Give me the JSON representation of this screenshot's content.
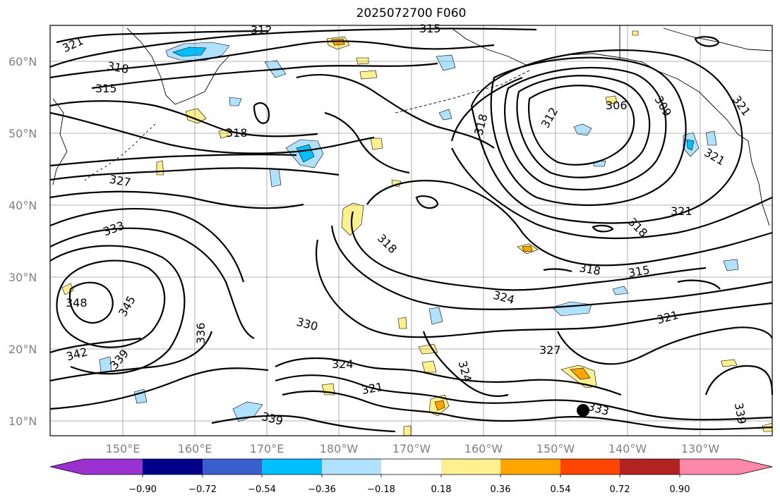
{
  "title": "2025072700 F060",
  "lat_labels": [
    "60°N",
    "50°N",
    "40°N",
    "30°N",
    "20°N",
    "10°N"
  ],
  "lon_labels": [
    "150°E",
    "160°E",
    "170°E",
    "180°W",
    "170°W",
    "160°W",
    "150°W",
    "140°W",
    "130°W"
  ],
  "contour_labels": [
    "321",
    "312",
    "315",
    "318",
    "315",
    "318",
    "327",
    "333",
    "348",
    "345",
    "342",
    "339",
    "336",
    "330",
    "324",
    "321",
    "339",
    "318",
    "312",
    "306",
    "309",
    "321",
    "321",
    "321",
    "318",
    "318",
    "318",
    "315",
    "324",
    "321",
    "327",
    "324",
    "333",
    "339"
  ],
  "colorbar": {
    "tick_labels": [
      "−0.90",
      "−0.72",
      "−0.54",
      "−0.36",
      "−0.18",
      "0.18",
      "0.36",
      "0.54",
      "0.72",
      "0.90"
    ],
    "colors": [
      "#9b30d0",
      "#00008b",
      "#3a5fcd",
      "#00bfff",
      "#b0e2ff",
      "#ffffff",
      "#fff08f",
      "#ffa500",
      "#ff4500",
      "#b22222",
      "#ff88aa"
    ]
  },
  "marker": "storm-position-dot"
}
